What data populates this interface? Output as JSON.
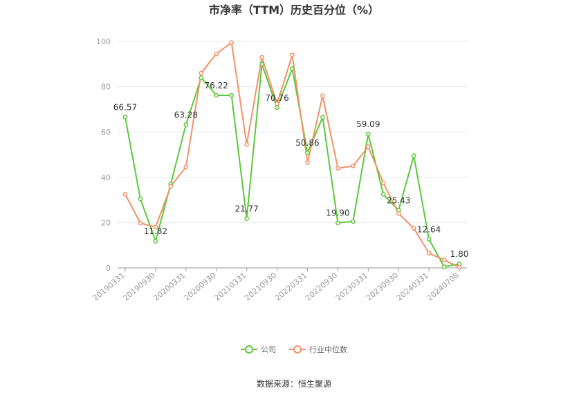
{
  "chart_data": {
    "type": "line",
    "title": "市净率（TTM）历史百分位（%）",
    "ylim": [
      0,
      100
    ],
    "yticks": [
      0,
      20,
      40,
      60,
      80,
      100
    ],
    "x_tick_labels": [
      "20190331",
      "20190930",
      "20200331",
      "20200930",
      "20210331",
      "20210930",
      "20220331",
      "20220930",
      "20230331",
      "20230930",
      "20240331",
      "20240708"
    ],
    "x": [
      "20190331",
      "20190630",
      "20190930",
      "20191231",
      "20200331",
      "20200630",
      "20200930",
      "20201231",
      "20210331",
      "20210630",
      "20210930",
      "20211231",
      "20220331",
      "20220630",
      "20220930",
      "20221231",
      "20230331",
      "20230630",
      "20230930",
      "20231231",
      "20240331",
      "20240630",
      "20240708"
    ],
    "grid": true,
    "legend_position": "bottom",
    "series": [
      {
        "name": "公司",
        "color": "#5cc83a",
        "values": [
          66.57,
          30.5,
          11.82,
          37,
          63.28,
          84,
          76.22,
          76.2,
          21.77,
          90,
          70.76,
          88,
          50.86,
          66.5,
          19.9,
          20.5,
          59.09,
          32.5,
          25.43,
          49.5,
          12.64,
          0.5,
          1.8
        ],
        "labels": {
          "0": "66.57",
          "2": "11.82",
          "4": "63.28",
          "6": "76.22",
          "8": "21.77",
          "10": "70.76",
          "12": "50.86",
          "14": "19.90",
          "16": "59.09",
          "18": "25.43",
          "20": "12.64",
          "22": "1.80"
        }
      },
      {
        "name": "行业中位数",
        "color": "#f59066",
        "values": [
          32.5,
          19.8,
          18,
          36,
          44.5,
          86,
          94.5,
          99.5,
          54.5,
          93,
          72.5,
          94,
          46.5,
          76,
          44,
          45,
          53.5,
          37.5,
          24,
          17.5,
          6.5,
          3.5,
          0.3
        ]
      }
    ]
  },
  "source": "数据来源：恒生聚源"
}
